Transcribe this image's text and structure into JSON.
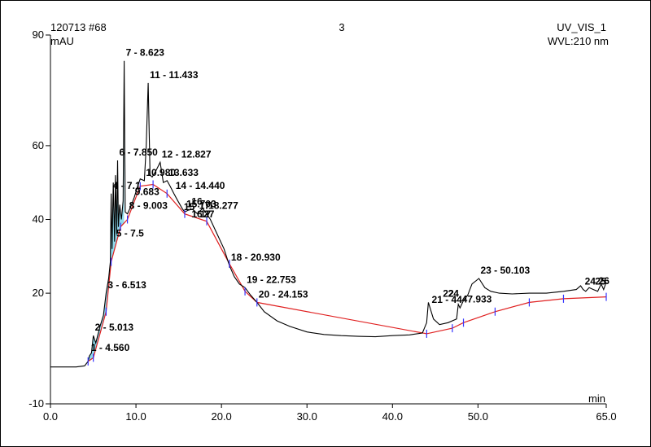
{
  "header": {
    "sample": "120713 #68",
    "injection": "3",
    "channel": "UV_VIS_1",
    "wavelength": "WVL:210 nm"
  },
  "chart_data": {
    "type": "line",
    "title": "",
    "xlabel": "min",
    "ylabel": "mAU",
    "xlim": [
      0,
      65
    ],
    "ylim": [
      -10,
      90
    ],
    "grid": false,
    "x_ticks": [
      "0.0",
      "10.0",
      "20.0",
      "30.0",
      "40.0",
      "50.0",
      "65.0"
    ],
    "y_ticks": [
      "-10",
      "20",
      "40",
      "60",
      "90"
    ],
    "colors": {
      "trace": "#000000",
      "baseline": "#e02020",
      "fill": "#33bbdd",
      "marker": "#3333ff"
    },
    "series": [
      {
        "x": [
          0.0,
          3.0,
          4.0,
          4.4,
          4.56,
          4.8,
          5.013,
          5.3,
          5.8,
          6.2,
          6.513,
          6.8,
          7.0,
          7.1,
          7.2,
          7.35,
          7.5,
          7.6,
          7.75,
          7.85,
          7.95,
          8.1,
          8.3,
          8.5,
          8.623,
          8.75,
          9.003,
          9.4,
          9.8,
          10.2,
          10.5,
          10.98,
          11.2,
          11.433,
          11.65,
          11.9,
          12.3,
          12.827,
          13.2,
          13.633,
          14.0,
          14.44,
          14.9,
          15.4,
          15.703,
          16.1,
          16.6,
          17.2,
          17.8,
          18.277,
          18.7,
          19.5,
          20.3,
          20.93,
          21.5,
          22.1,
          22.753,
          23.4,
          24.153,
          25.0,
          26.5,
          28.0,
          30.0,
          32.0,
          34.0,
          36.0,
          38.0,
          40.0,
          42.0,
          43.5,
          44.0,
          44.2,
          44.4,
          44.8,
          45.5,
          46.5,
          47.5,
          47.7,
          47.9,
          48.3,
          48.8,
          49.3,
          50.103,
          50.8,
          51.5,
          52.5,
          54.0,
          56.0,
          58.0,
          60.0,
          61.5,
          62.0,
          62.3,
          62.6,
          63.0,
          63.5,
          64.0,
          64.4,
          64.7,
          65.0
        ],
        "y": [
          0.0,
          0.0,
          0.3,
          1.5,
          3.0,
          3.8,
          8.5,
          6.5,
          11.0,
          14.0,
          20.0,
          24.0,
          28.5,
          47.0,
          32.0,
          50.0,
          34.0,
          52.0,
          36.0,
          56.0,
          38.0,
          44.0,
          40.0,
          45.0,
          83.0,
          42.0,
          41.5,
          43.5,
          46.0,
          49.0,
          51.0,
          50.5,
          60.0,
          77.0,
          52.0,
          51.5,
          53.0,
          55.5,
          50.0,
          50.5,
          49.0,
          47.0,
          45.0,
          43.0,
          42.0,
          42.5,
          42.8,
          41.5,
          43.0,
          41.5,
          40.0,
          36.0,
          32.0,
          27.5,
          24.5,
          22.5,
          21.5,
          19.5,
          17.5,
          15.0,
          12.5,
          11.0,
          9.5,
          8.8,
          8.5,
          8.3,
          8.2,
          8.5,
          8.7,
          9.2,
          12.0,
          17.5,
          16.0,
          13.0,
          11.5,
          12.0,
          13.0,
          17.0,
          16.0,
          18.0,
          19.5,
          22.5,
          24.0,
          21.5,
          20.5,
          20.0,
          19.8,
          20.0,
          20.0,
          20.5,
          21.0,
          22.0,
          21.0,
          20.5,
          21.5,
          21.0,
          20.5,
          22.5,
          21.0,
          23.0
        ]
      },
      {
        "x": [
          4.4,
          5.013,
          6.513,
          7.1,
          8.2,
          9.003,
          10.5,
          12.0,
          13.633,
          15.703,
          18.277,
          20.93,
          22.753,
          24.153,
          44.0,
          47.0,
          48.3,
          52.0,
          56.0,
          60.0,
          65.0
        ],
        "y": [
          1.5,
          2.5,
          15.0,
          28.5,
          38.0,
          40.0,
          49.0,
          49.5,
          47.0,
          41.5,
          39.5,
          28.0,
          20.5,
          17.5,
          9.0,
          10.5,
          12.0,
          15.0,
          17.5,
          18.5,
          19.0
        ]
      }
    ],
    "peaks": [
      {
        "id": 1,
        "rt": 4.56,
        "label": "1 - 4.560"
      },
      {
        "id": 2,
        "rt": 5.013,
        "label": "2 - 5.013"
      },
      {
        "id": 3,
        "rt": 6.513,
        "label": "3 - 6.513"
      },
      {
        "id": 4,
        "rt": 7.1,
        "label": "4 - 7.1"
      },
      {
        "id": 5,
        "rt": 7.5,
        "label": "5 - 7.5"
      },
      {
        "id": 6,
        "rt": 7.85,
        "label": "6 - 7.850"
      },
      {
        "id": 7,
        "rt": 8.623,
        "label": "7 - 8.623"
      },
      {
        "id": 8,
        "rt": 9.003,
        "label": "8 - 9.003"
      },
      {
        "id": 9,
        "rt": 9.683,
        "label": "9.683"
      },
      {
        "id": 10,
        "rt": 10.98,
        "label": "10.980"
      },
      {
        "id": 11,
        "rt": 11.433,
        "label": "11 - 11.433"
      },
      {
        "id": 12,
        "rt": 12.827,
        "label": "12 - 12.827"
      },
      {
        "id": 13,
        "rt": 13.633,
        "label": "13.633"
      },
      {
        "id": 14,
        "rt": 14.44,
        "label": "14 - 14.440"
      },
      {
        "id": 15,
        "rt": 15.703,
        "label": "15.703"
      },
      {
        "id": 16,
        "rt": 16.3,
        "label": "16"
      },
      {
        "id": 17,
        "rt": 17.2,
        "label": "17"
      },
      {
        "id": 18,
        "rt": 18.277,
        "label": "18.277"
      },
      {
        "id": 19,
        "rt": 20.93,
        "label": "18 - 20.930"
      },
      {
        "id": 20,
        "rt": 22.753,
        "label": "19 - 22.753"
      },
      {
        "id": 21,
        "rt": 24.153,
        "label": "20 - 24.153"
      },
      {
        "id": 22,
        "rt": 44.4,
        "label": "21 - 44"
      },
      {
        "id": 23,
        "rt": 47.933,
        "label": "47.933"
      },
      {
        "id": 24,
        "rt": 50.103,
        "label": "23 - 50.103"
      },
      {
        "id": 25,
        "rt": 62.3,
        "label": "24"
      },
      {
        "id": 26,
        "rt": 63.5,
        "label": "25"
      }
    ]
  },
  "overlap_labels": [
    {
      "text": "15",
      "x": 15.6,
      "y": 42.5
    },
    {
      "text": "16",
      "x": 16.5,
      "y": 40.5
    },
    {
      "text": "17",
      "x": 17.5,
      "y": 40.5
    },
    {
      "text": "27",
      "x": 17.9,
      "y": 40.5
    },
    {
      "text": "22",
      "x": 45.9,
      "y": 19.0
    },
    {
      "text": "24",
      "x": 46.5,
      "y": 19.0
    },
    {
      "text": "26",
      "x": 64.1,
      "y": 22.5
    }
  ]
}
